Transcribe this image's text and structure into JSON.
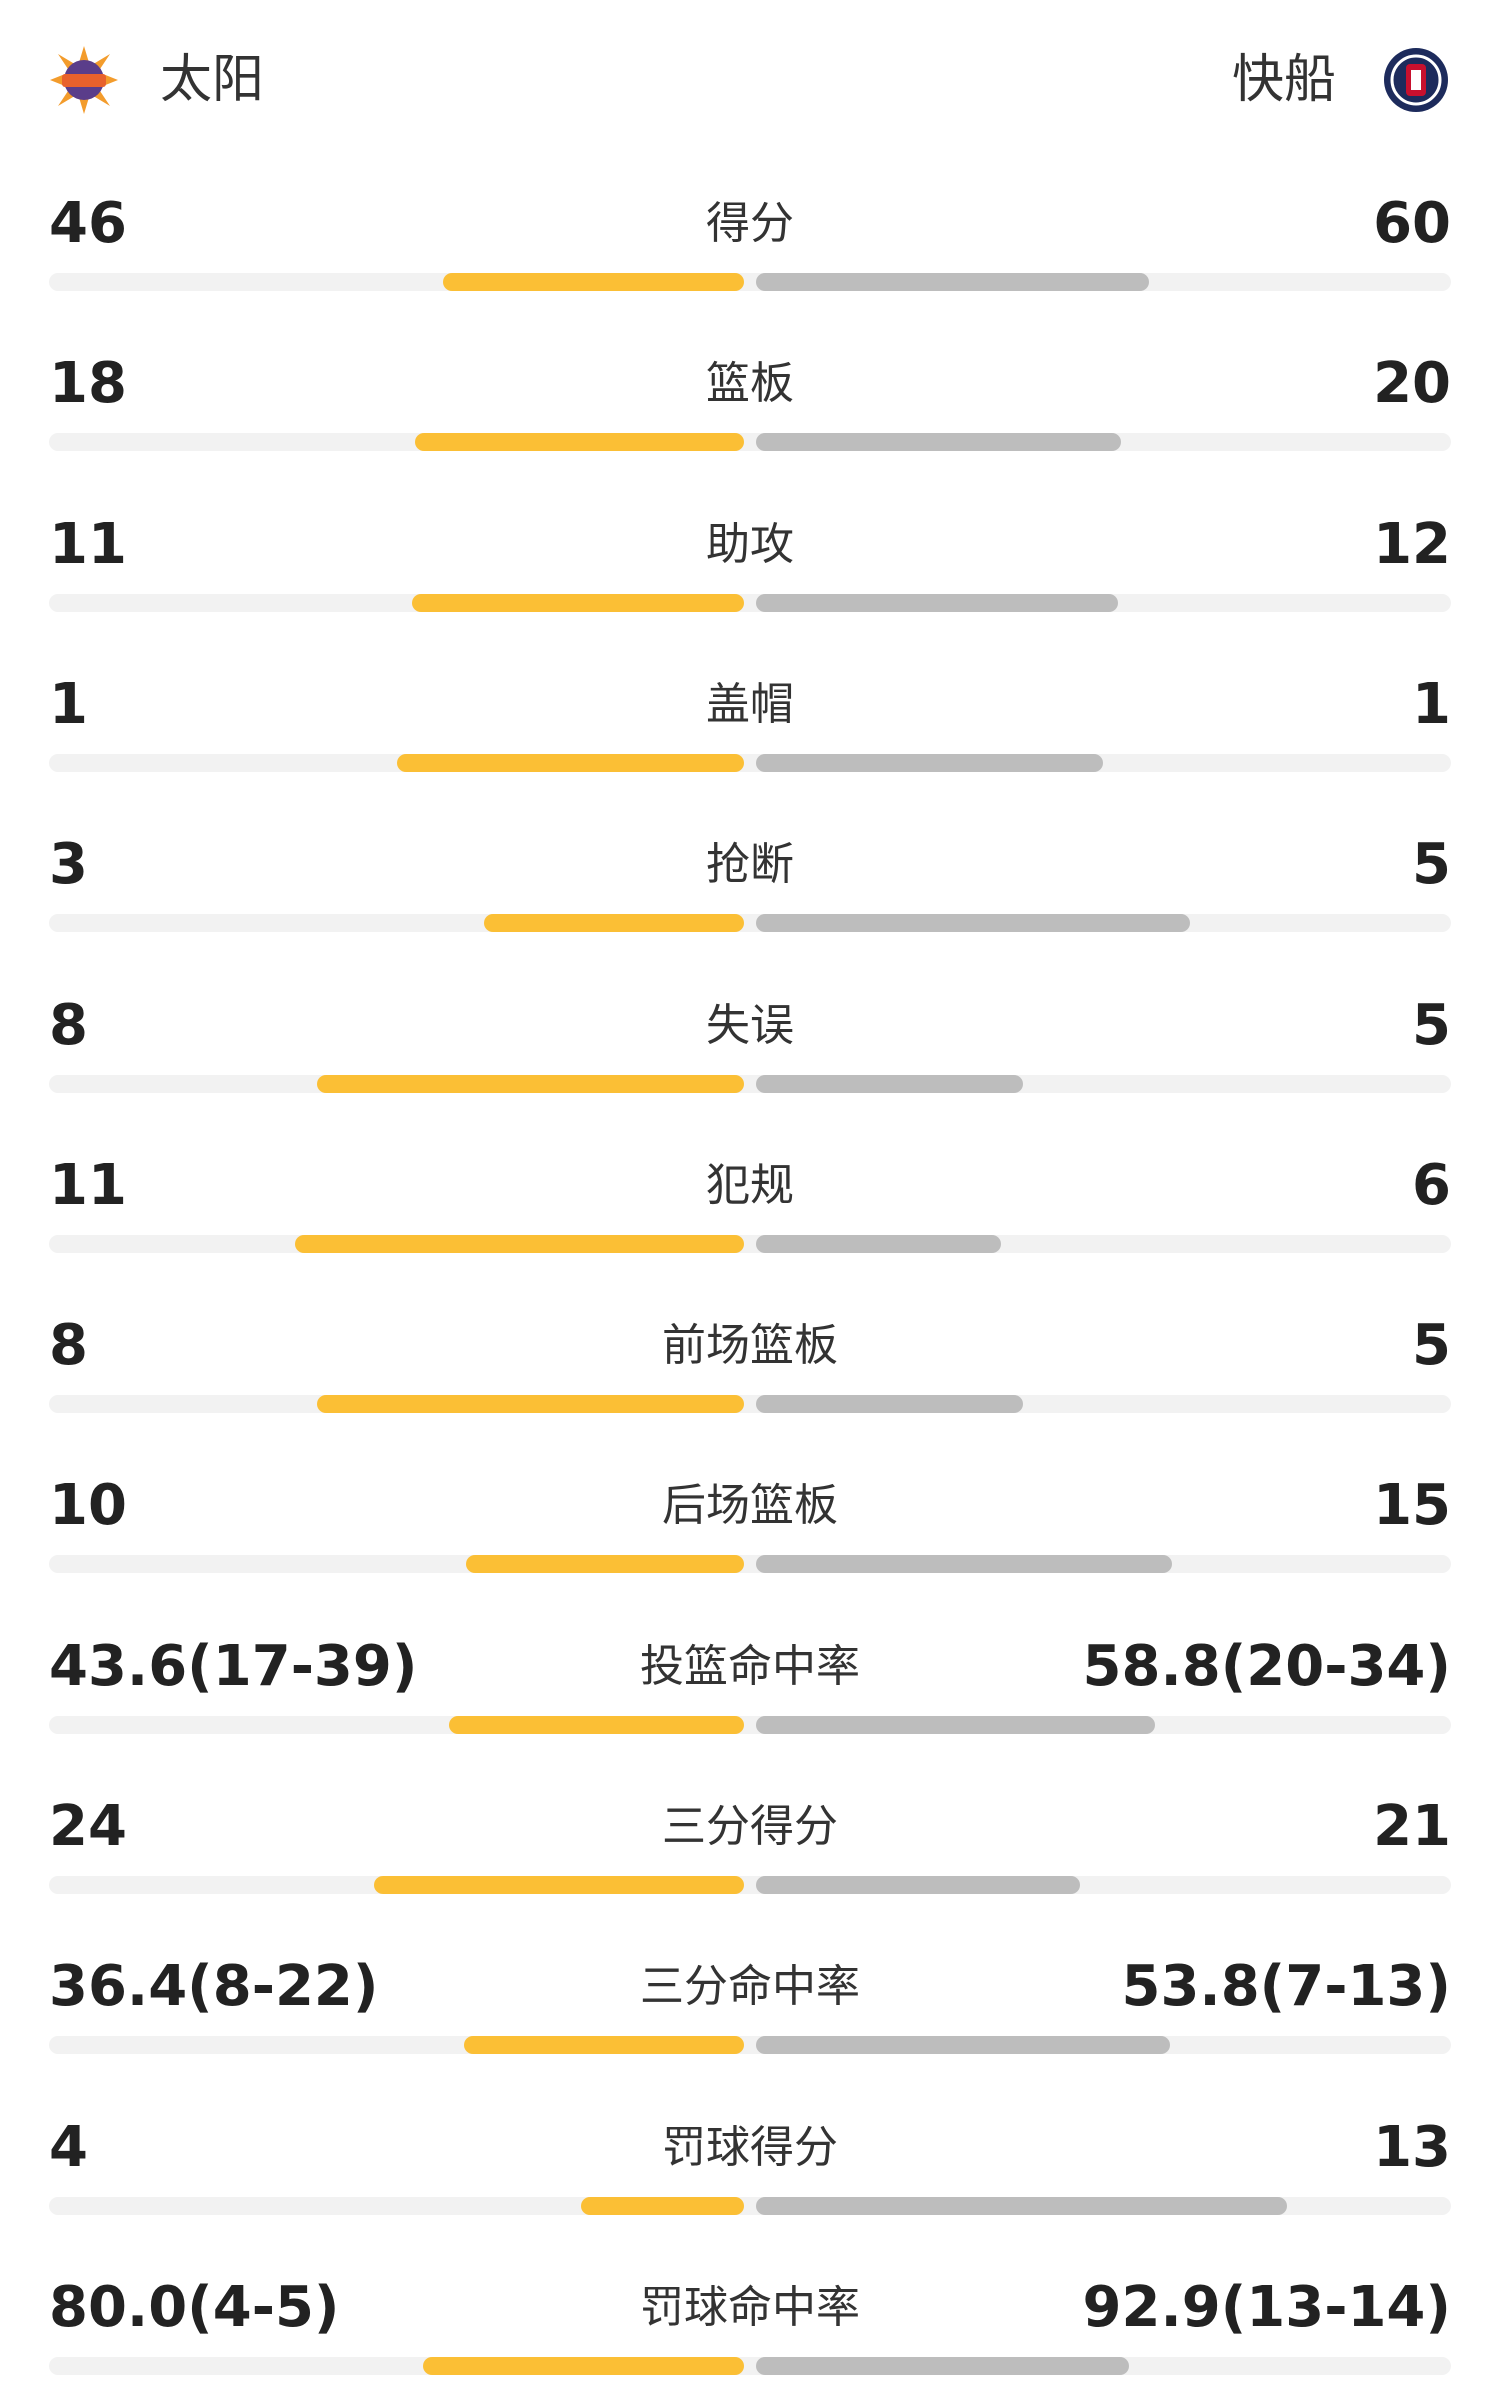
{
  "header": {
    "home": "太阳",
    "away": "快船"
  },
  "rows": [
    {
      "label": "得分",
      "home": 46,
      "away": 60
    },
    {
      "label": "篮板",
      "home": 18,
      "away": 20
    },
    {
      "label": "助攻",
      "home": 11,
      "away": 12
    },
    {
      "label": "盖帽",
      "home": 1,
      "away": 1
    },
    {
      "label": "抢断",
      "home": 3,
      "away": 5
    },
    {
      "label": "失误",
      "home": 8,
      "away": 5
    },
    {
      "label": "犯规",
      "home": 11,
      "away": 6
    },
    {
      "label": "前场篮板",
      "home": 8,
      "away": 5
    },
    {
      "label": "后场篮板",
      "home": 10,
      "away": 15
    },
    {
      "label": "投篮命中率",
      "home": 43.6,
      "home_label": "43.6(17-39)",
      "away": 58.8,
      "away_label": "58.8(20-34)"
    },
    {
      "label": "三分得分",
      "home": 24,
      "away": 21
    },
    {
      "label": "三分命中率",
      "home": 36.4,
      "home_label": "36.4(8-22)",
      "away": 53.8,
      "away_label": "53.8(7-13)"
    },
    {
      "label": "罚球得分",
      "home": 4,
      "away": 13
    },
    {
      "label": "罚球命中率",
      "home": 80.0,
      "home_label": "80.0(4-5)",
      "away": 92.9,
      "away_label": "92.9(13-14)"
    }
  ]
}
